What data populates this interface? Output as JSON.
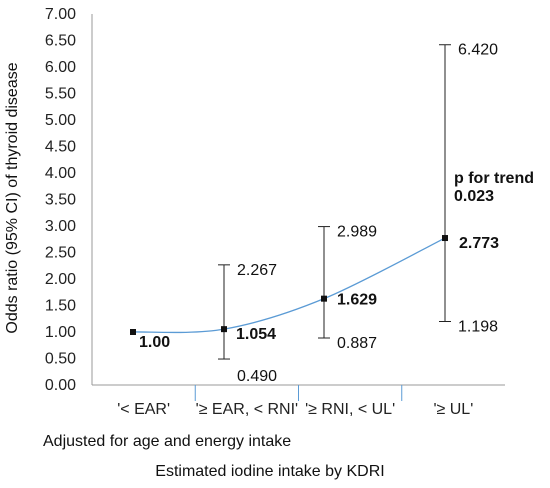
{
  "chart_data": {
    "type": "line",
    "categories": [
      "'< EAR'",
      "'≥ EAR, < RNI'",
      "'≥ RNI, < UL'",
      "'≥ UL'"
    ],
    "series": [
      {
        "values": [
          1.0,
          1.054,
          1.629,
          2.773
        ],
        "value_labels": [
          "1.00",
          "1.054",
          "1.629",
          "2.773"
        ],
        "ci_lower": [
          null,
          0.49,
          0.887,
          1.198
        ],
        "ci_upper": [
          null,
          2.267,
          2.989,
          6.42
        ],
        "ci_lower_labels": [
          "",
          "0.490",
          "0.887",
          "1.198"
        ],
        "ci_upper_labels": [
          "",
          "2.267",
          "2.989",
          "6.420"
        ]
      }
    ],
    "ylabel": "Odds ratio (95% CI) of thyroid disease",
    "xlabel": "Estimated iodine intake by KDRI",
    "subtitle": "Adjusted for age and energy intake",
    "ylim": [
      0,
      7
    ],
    "yticks": [
      "0.00",
      "0.50",
      "1.00",
      "1.50",
      "2.00",
      "2.50",
      "3.00",
      "3.50",
      "4.00",
      "4.50",
      "5.00",
      "5.50",
      "6.00",
      "6.50",
      "7.00"
    ],
    "annotation": {
      "line1": "p for trend",
      "line2": "0.023"
    },
    "colors": {
      "line": "#5b9bd5",
      "marker": "#111111",
      "errorbar": "#222222",
      "axis": "#999999"
    },
    "grid": false
  }
}
